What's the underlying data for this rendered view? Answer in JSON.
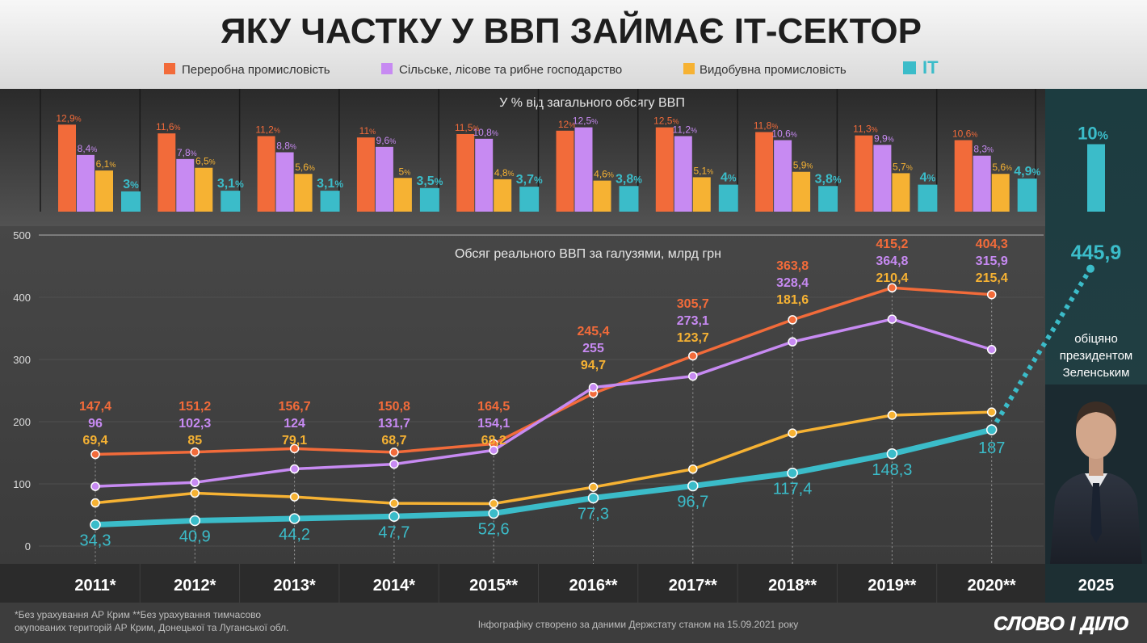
{
  "title": "ЯКУ ЧАСТКУ У ВВП ЗАЙМАЄ ІТ-СЕКТОР",
  "legend": [
    {
      "label": "Переробна промисловість",
      "color": "#f26b3a"
    },
    {
      "label": "Сільське, лісове та рибне господарство",
      "color": "#c78af2"
    },
    {
      "label": "Видобувна промисловість",
      "color": "#f6b233"
    },
    {
      "label": "IT",
      "color": "#3bbcc9"
    }
  ],
  "colors": {
    "manufacturing": "#f26b3a",
    "agriculture": "#c78af2",
    "mining": "#f6b233",
    "it": "#3bbcc9"
  },
  "share_section": {
    "title": "У % від загального обсягу ВВП",
    "unit": "%"
  },
  "volume_section": {
    "title": "Обсяг реального ВВП за галузями, млрд грн"
  },
  "promise": {
    "year": "2025",
    "text": [
      "обіцяно",
      "президентом",
      "Зеленським"
    ],
    "share": "10",
    "unit": "%",
    "value": "445,9"
  },
  "portrait": "zelensky-portrait",
  "footnotes": {
    "line1": "*Без урахування АР Крим   **Без урахування тимчасово",
    "line2": "окупованих територій  АР Крим, Донецької та Луганської обл."
  },
  "source": "Інфографіку створено за даними Держстату станом на 15.09.2021 року",
  "logo": "СЛОВО І ДІЛО",
  "chart_data": [
    {
      "type": "bar",
      "title": "У % від загального обсягу ВВП",
      "categories": [
        "2011",
        "2012",
        "2013",
        "2014",
        "2015",
        "2016",
        "2017",
        "2018",
        "2019",
        "2020"
      ],
      "series": [
        {
          "name": "Переробна промисловість",
          "values": [
            12.9,
            11.6,
            11.2,
            11,
            11.5,
            12,
            12.5,
            11.8,
            11.3,
            10.6
          ],
          "labels": [
            "12,9",
            "11,6",
            "11,2",
            "11",
            "11,5",
            "12",
            "12,5",
            "11,8",
            "11,3",
            "10,6"
          ]
        },
        {
          "name": "Сільське, лісове та рибне господарство",
          "values": [
            8.4,
            7.8,
            8.8,
            9.6,
            10.8,
            12.5,
            11.2,
            10.6,
            9.9,
            8.3
          ],
          "labels": [
            "8,4",
            "7,8",
            "8,8",
            "9,6",
            "10,8",
            "12,5",
            "11,2",
            "10,6",
            "9,9",
            "8,3"
          ]
        },
        {
          "name": "Видобувна промисловість",
          "values": [
            6.1,
            6.5,
            5.6,
            5,
            4.8,
            4.6,
            5.1,
            5.9,
            5.7,
            5.6
          ],
          "labels": [
            "6,1",
            "6,5",
            "5,6",
            "5",
            "4,8",
            "4,6",
            "5,1",
            "5,9",
            "5,7",
            "5,6"
          ]
        },
        {
          "name": "IT",
          "values": [
            3,
            3.1,
            3.1,
            3.5,
            3.7,
            3.8,
            4,
            3.8,
            4,
            4.9
          ],
          "labels": [
            "3",
            "3,1",
            "3,1",
            "3,5",
            "3,7",
            "3,8",
            "4",
            "3,8",
            "4",
            "4,9"
          ]
        }
      ],
      "promise": {
        "category": "2025",
        "series": "IT",
        "value": 10,
        "label": "10"
      }
    },
    {
      "type": "line",
      "title": "Обсяг реального ВВП за галузями, млрд грн",
      "x": [
        "2011",
        "2012",
        "2013",
        "2014",
        "2015",
        "2016",
        "2017",
        "2018",
        "2019",
        "2020"
      ],
      "x_labels": [
        "2011*",
        "2012*",
        "2013*",
        "2014*",
        "2015**",
        "2016**",
        "2017**",
        "2018**",
        "2019**",
        "2020**"
      ],
      "ylim": [
        0,
        500
      ],
      "y_ticks": [
        0,
        100,
        200,
        300,
        400,
        500
      ],
      "series": [
        {
          "name": "Переробна промисловість",
          "values": [
            147.4,
            151.2,
            156.7,
            150.8,
            164.5,
            245.4,
            305.7,
            363.8,
            415.2,
            404.3
          ],
          "labels": [
            "147,4",
            "151,2",
            "156,7",
            "150,8",
            "164,5",
            "245,4",
            "305,7",
            "363,8",
            "415,2",
            "404,3"
          ]
        },
        {
          "name": "Сільське, лісове та рибне господарство",
          "values": [
            96,
            102.3,
            124,
            131.7,
            154.1,
            255,
            273.1,
            328.4,
            364.8,
            315.9
          ],
          "labels": [
            "96",
            "102,3",
            "124",
            "131,7",
            "154,1",
            "255",
            "273,1",
            "328,4",
            "364,8",
            "315,9"
          ]
        },
        {
          "name": "Видобувна промисловість",
          "values": [
            69.4,
            85,
            79.1,
            68.7,
            68.2,
            94.7,
            123.7,
            181.6,
            210.4,
            215.4
          ],
          "labels": [
            "69,4",
            "85",
            "79,1",
            "68,7",
            "68,2",
            "94,7",
            "123,7",
            "181,6",
            "210,4",
            "215,4"
          ]
        },
        {
          "name": "IT",
          "values": [
            34.3,
            40.9,
            44.2,
            47.7,
            52.6,
            77.3,
            96.7,
            117.4,
            148.3,
            187
          ],
          "labels": [
            "34,3",
            "40,9",
            "44,2",
            "47,7",
            "52,6",
            "77,3",
            "96,7",
            "117,4",
            "148,3",
            "187"
          ]
        }
      ],
      "projection": {
        "series": "IT",
        "x": "2025",
        "value": 445.9,
        "label": "445,9"
      }
    }
  ]
}
